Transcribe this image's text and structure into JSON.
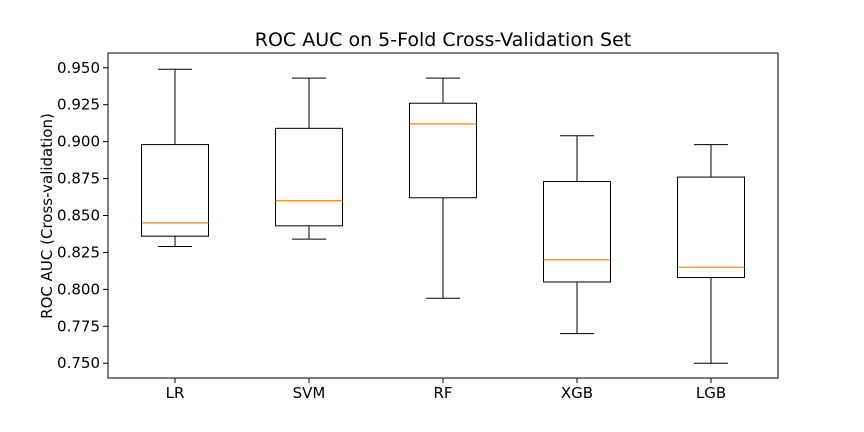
{
  "chart_data": {
    "type": "box",
    "title": "ROC AUC on 5-Fold Cross-Validation Set",
    "xlabel": "",
    "ylabel": "ROC AUC (Cross-validation)",
    "categories": [
      "LR",
      "SVM",
      "RF",
      "XGB",
      "LGB"
    ],
    "ylim": [
      0.74,
      0.96
    ],
    "yticks": [
      "0.750",
      "0.775",
      "0.800",
      "0.825",
      "0.850",
      "0.875",
      "0.900",
      "0.925",
      "0.950"
    ],
    "boxes": [
      {
        "label": "LR",
        "whisker_low": 0.829,
        "q1": 0.836,
        "median": 0.845,
        "q3": 0.898,
        "whisker_high": 0.949
      },
      {
        "label": "SVM",
        "whisker_low": 0.834,
        "q1": 0.843,
        "median": 0.86,
        "q3": 0.909,
        "whisker_high": 0.943
      },
      {
        "label": "RF",
        "whisker_low": 0.794,
        "q1": 0.862,
        "median": 0.912,
        "q3": 0.926,
        "whisker_high": 0.943
      },
      {
        "label": "XGB",
        "whisker_low": 0.77,
        "q1": 0.805,
        "median": 0.82,
        "q3": 0.873,
        "whisker_high": 0.904
      },
      {
        "label": "LGB",
        "whisker_low": 0.75,
        "q1": 0.808,
        "median": 0.815,
        "q3": 0.876,
        "whisker_high": 0.898
      }
    ],
    "colors": {
      "box": "#000000",
      "median": "#ff7f0e"
    },
    "grid": false
  }
}
